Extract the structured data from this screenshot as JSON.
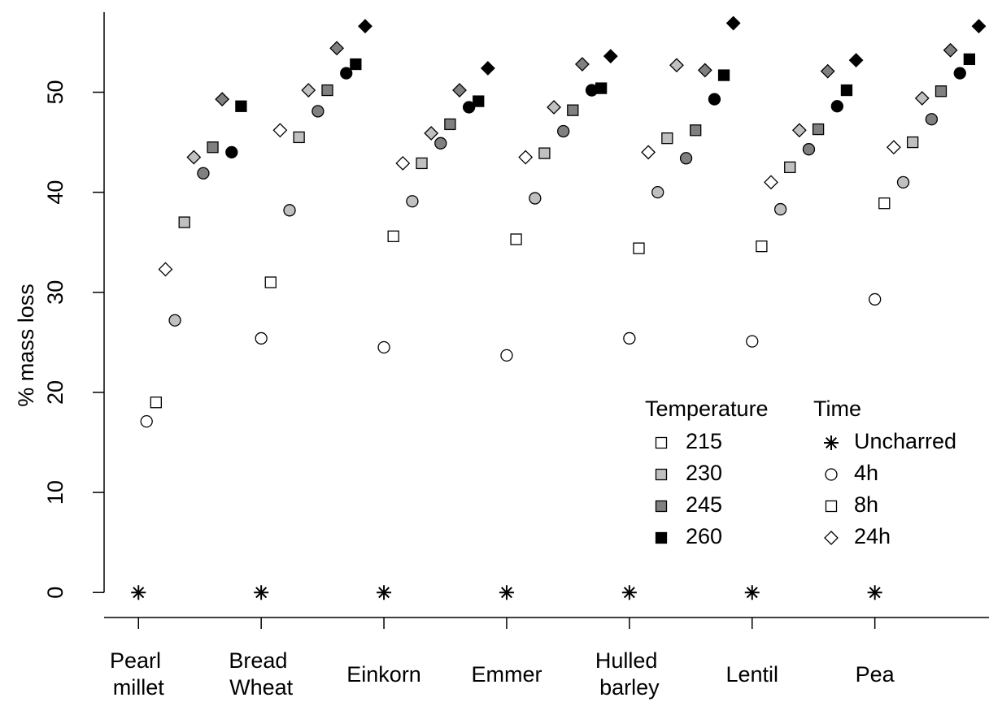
{
  "chart_data": {
    "type": "scatter",
    "y_label": "% mass loss",
    "xlim": [
      0.72,
      7.93
    ],
    "ylim": [
      -2.5,
      58
    ],
    "yticks": [
      0,
      10,
      20,
      30,
      40,
      50
    ],
    "xticks": [
      {
        "value": 1,
        "label": "Pearl millet"
      },
      {
        "value": 2,
        "label": "Bread Wheat"
      },
      {
        "value": 3,
        "label": "Einkorn"
      },
      {
        "value": 4,
        "label": "Emmer"
      },
      {
        "value": 5,
        "label": "Hulled barley"
      },
      {
        "value": 6,
        "label": "Lentil"
      },
      {
        "value": 7,
        "label": "Pea"
      }
    ],
    "legend": {
      "temperature": {
        "title": "Temperature",
        "labels": [
          "215",
          "230",
          "245",
          "260"
        ],
        "colors": [
          "#ffffff",
          "#c0c0c0",
          "#808080",
          "#000000"
        ]
      },
      "time": {
        "title": "Time",
        "labels": [
          "Uncharred",
          "4h",
          "8h",
          "24h"
        ],
        "markers": [
          "asterisk",
          "circle",
          "square",
          "diamond"
        ]
      }
    },
    "series": [
      {
        "marker": "asterisk",
        "color": "#000000",
        "x": [
          1,
          2,
          3,
          4,
          5,
          6,
          7
        ],
        "values": [
          0,
          0,
          0,
          0,
          0,
          0,
          0
        ]
      },
      {
        "marker": "circle",
        "color": "#ffffff",
        "x": [
          1.066,
          2,
          3,
          4,
          5,
          6,
          7
        ],
        "values": [
          17.1,
          25.4,
          24.5,
          23.7,
          25.4,
          25.1,
          29.3
        ]
      },
      {
        "marker": "square",
        "color": "#ffffff",
        "x": [
          1.143,
          2.077,
          3.077,
          4.077,
          5.077,
          6.077,
          7.077
        ],
        "values": [
          19.0,
          31.0,
          35.6,
          35.3,
          34.4,
          34.6,
          38.9
        ]
      },
      {
        "marker": "diamond",
        "color": "#ffffff",
        "x": [
          1.22,
          2.154,
          3.154,
          4.154,
          5.154,
          6.154,
          7.154
        ],
        "values": [
          32.3,
          46.2,
          42.9,
          43.5,
          44.0,
          41.0,
          44.5
        ]
      },
      {
        "marker": "circle",
        "color": "#c0c0c0",
        "x": [
          1.297,
          2.231,
          3.231,
          4.231,
          5.231,
          6.231,
          7.231
        ],
        "values": [
          27.2,
          38.2,
          39.1,
          39.4,
          40.0,
          38.3,
          41.0
        ]
      },
      {
        "marker": "square",
        "color": "#c0c0c0",
        "x": [
          1.374,
          2.308,
          3.308,
          4.308,
          5.308,
          6.308,
          7.308
        ],
        "values": [
          37.0,
          45.5,
          42.9,
          43.9,
          45.4,
          42.5,
          45.0
        ]
      },
      {
        "marker": "diamond",
        "color": "#c0c0c0",
        "x": [
          1.451,
          2.385,
          3.385,
          4.385,
          5.385,
          6.385,
          7.385
        ],
        "values": [
          43.5,
          50.2,
          45.9,
          48.5,
          52.7,
          46.2,
          49.4
        ]
      },
      {
        "marker": "circle",
        "color": "#808080",
        "x": [
          1.528,
          2.462,
          3.462,
          4.462,
          5.462,
          6.462,
          7.462
        ],
        "values": [
          41.9,
          48.1,
          44.9,
          46.1,
          43.4,
          44.3,
          47.3
        ]
      },
      {
        "marker": "square",
        "color": "#808080",
        "x": [
          1.605,
          2.539,
          3.539,
          4.539,
          5.539,
          6.539,
          7.539
        ],
        "values": [
          44.5,
          50.2,
          46.8,
          48.2,
          46.2,
          46.3,
          50.1
        ]
      },
      {
        "marker": "diamond",
        "color": "#808080",
        "x": [
          1.682,
          2.616,
          3.616,
          4.616,
          5.616,
          6.616,
          7.616
        ],
        "values": [
          49.3,
          54.4,
          50.2,
          52.8,
          52.2,
          52.1,
          54.2
        ]
      },
      {
        "marker": "circle",
        "color": "#000000",
        "x": [
          1.759,
          2.693,
          3.693,
          4.693,
          5.693,
          6.693,
          7.693
        ],
        "values": [
          44.0,
          51.9,
          48.5,
          50.2,
          49.3,
          48.6,
          51.9
        ]
      },
      {
        "marker": "square",
        "color": "#000000",
        "x": [
          1.836,
          2.77,
          3.77,
          4.77,
          5.77,
          6.77,
          7.77
        ],
        "values": [
          48.6,
          52.8,
          49.1,
          50.4,
          51.7,
          50.2,
          53.3
        ]
      },
      {
        "marker": "diamond",
        "color": "#000000",
        "x": [
          1.913,
          2.847,
          3.847,
          4.847,
          5.847,
          6.847,
          7.847
        ],
        "values": [
          null,
          56.6,
          52.4,
          53.6,
          56.9,
          53.2,
          56.6
        ]
      }
    ]
  }
}
